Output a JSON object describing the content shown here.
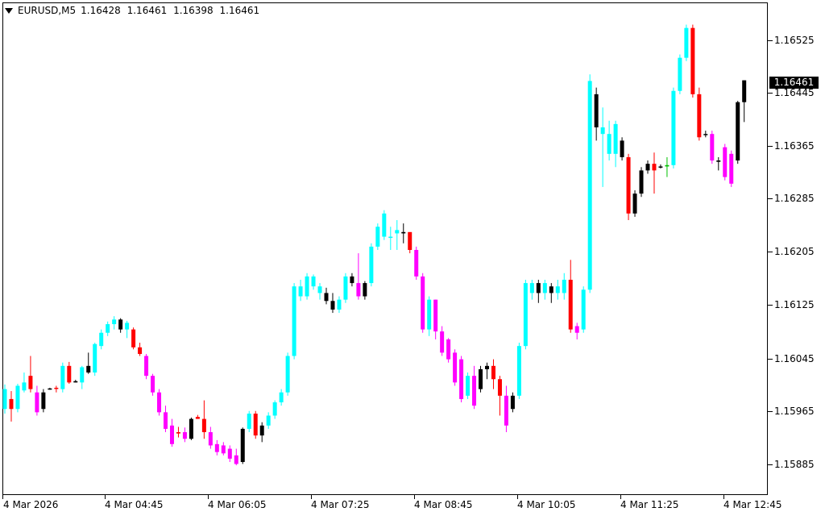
{
  "header": {
    "symbol": "EURUSD,M5",
    "open": "1.16428",
    "high": "1.16461",
    "low": "1.16398",
    "close": "1.16461"
  },
  "price_axis": {
    "labels": [
      "1.16525",
      "1.16445",
      "1.16365",
      "1.16285",
      "1.16205",
      "1.16125",
      "1.16045",
      "1.15965",
      "1.15885"
    ],
    "current_price": "1.16461"
  },
  "time_axis": {
    "labels": [
      "4 Mar 2026",
      "4 Mar 04:45",
      "4 Mar 06:05",
      "4 Mar 07:25",
      "4 Mar 08:45",
      "4 Mar 10:05",
      "4 Mar 11:25",
      "4 Mar 12:45"
    ]
  },
  "colors": {
    "up_wick_bear": "#ff00ff",
    "bull": "#00ffff",
    "bear": "#ff0000",
    "neutral": "#000000",
    "current_price_bg": "#000000"
  },
  "chart_data": {
    "type": "candlestick",
    "symbol": "EURUSD",
    "timeframe": "M5",
    "ylim": [
      1.1586,
      1.1656
    ],
    "candles": [
      {
        "o": 1.15995,
        "h": 1.16002,
        "l": 1.15958,
        "c": 1.15965,
        "col": "bull"
      },
      {
        "o": 1.15965,
        "h": 1.15992,
        "l": 1.15946,
        "c": 1.1598,
        "col": "bear"
      },
      {
        "o": 1.15965,
        "h": 1.16003,
        "l": 1.1596,
        "c": 1.16,
        "col": "bull"
      },
      {
        "o": 1.15993,
        "h": 1.1602,
        "l": 1.1599,
        "c": 1.16005,
        "col": "bull"
      },
      {
        "o": 1.16015,
        "h": 1.16045,
        "l": 1.1599,
        "c": 1.15995,
        "col": "bear"
      },
      {
        "o": 1.1599,
        "h": 1.16,
        "l": 1.15955,
        "c": 1.1596,
        "col": "mag"
      },
      {
        "o": 1.15965,
        "h": 1.15995,
        "l": 1.1596,
        "c": 1.1599,
        "col": "neutral"
      },
      {
        "o": 1.15995,
        "h": 1.15997,
        "l": 1.15994,
        "c": 1.15996,
        "col": "neutral"
      },
      {
        "o": 1.15996,
        "h": 1.16,
        "l": 1.1599,
        "c": 1.15997,
        "col": "bear"
      },
      {
        "o": 1.15995,
        "h": 1.16035,
        "l": 1.1599,
        "c": 1.1603,
        "col": "bull"
      },
      {
        "o": 1.1603,
        "h": 1.16036,
        "l": 1.16003,
        "c": 1.16005,
        "col": "bear"
      },
      {
        "o": 1.16005,
        "h": 1.16009,
        "l": 1.16005,
        "c": 1.16007,
        "col": "neutral"
      },
      {
        "o": 1.16005,
        "h": 1.1603,
        "l": 1.15995,
        "c": 1.16028,
        "col": "bull"
      },
      {
        "o": 1.1603,
        "h": 1.1605,
        "l": 1.16018,
        "c": 1.1602,
        "col": "neutral"
      },
      {
        "o": 1.1602,
        "h": 1.16065,
        "l": 1.16015,
        "c": 1.16063,
        "col": "bull"
      },
      {
        "o": 1.1606,
        "h": 1.16085,
        "l": 1.16055,
        "c": 1.1608,
        "col": "bull"
      },
      {
        "o": 1.1608,
        "h": 1.16097,
        "l": 1.16075,
        "c": 1.16093,
        "col": "bull"
      },
      {
        "o": 1.16093,
        "h": 1.16105,
        "l": 1.16085,
        "c": 1.161,
        "col": "bull"
      },
      {
        "o": 1.161,
        "h": 1.16102,
        "l": 1.1608,
        "c": 1.16085,
        "col": "neutral"
      },
      {
        "o": 1.16085,
        "h": 1.16098,
        "l": 1.16072,
        "c": 1.16095,
        "col": "bull"
      },
      {
        "o": 1.16085,
        "h": 1.16088,
        "l": 1.16055,
        "c": 1.16058,
        "col": "bear"
      },
      {
        "o": 1.16058,
        "h": 1.16065,
        "l": 1.16045,
        "c": 1.16048,
        "col": "bear"
      },
      {
        "o": 1.16045,
        "h": 1.16048,
        "l": 1.1601,
        "c": 1.16015,
        "col": "mag"
      },
      {
        "o": 1.16015,
        "h": 1.16018,
        "l": 1.15985,
        "c": 1.1599,
        "col": "mag"
      },
      {
        "o": 1.1599,
        "h": 1.15995,
        "l": 1.15955,
        "c": 1.1596,
        "col": "mag"
      },
      {
        "o": 1.1596,
        "h": 1.1597,
        "l": 1.1593,
        "c": 1.15935,
        "col": "mag"
      },
      {
        "o": 1.1594,
        "h": 1.1595,
        "l": 1.15908,
        "c": 1.15912,
        "col": "mag"
      },
      {
        "o": 1.1593,
        "h": 1.15938,
        "l": 1.15922,
        "c": 1.15928,
        "col": "bear"
      },
      {
        "o": 1.1593,
        "h": 1.15937,
        "l": 1.15915,
        "c": 1.1592,
        "col": "mag"
      },
      {
        "o": 1.1592,
        "h": 1.15952,
        "l": 1.15918,
        "c": 1.1595,
        "col": "neutral"
      },
      {
        "o": 1.1595,
        "h": 1.15956,
        "l": 1.1595,
        "c": 1.15953,
        "col": "bear"
      },
      {
        "o": 1.1595,
        "h": 1.15978,
        "l": 1.1592,
        "c": 1.1593,
        "col": "bear"
      },
      {
        "o": 1.1593,
        "h": 1.15938,
        "l": 1.15905,
        "c": 1.1591,
        "col": "mag"
      },
      {
        "o": 1.15912,
        "h": 1.15918,
        "l": 1.15895,
        "c": 1.159,
        "col": "mag"
      },
      {
        "o": 1.1591,
        "h": 1.15915,
        "l": 1.15895,
        "c": 1.15898,
        "col": "mag"
      },
      {
        "o": 1.15905,
        "h": 1.1591,
        "l": 1.15885,
        "c": 1.1589,
        "col": "mag"
      },
      {
        "o": 1.15895,
        "h": 1.15905,
        "l": 1.1588,
        "c": 1.15882,
        "col": "mag"
      },
      {
        "o": 1.15885,
        "h": 1.15937,
        "l": 1.15882,
        "c": 1.15935,
        "col": "neutral"
      },
      {
        "o": 1.15935,
        "h": 1.15962,
        "l": 1.1593,
        "c": 1.15958,
        "col": "bull"
      },
      {
        "o": 1.15958,
        "h": 1.15962,
        "l": 1.1592,
        "c": 1.15925,
        "col": "bear"
      },
      {
        "o": 1.15925,
        "h": 1.15945,
        "l": 1.15915,
        "c": 1.1594,
        "col": "neutral"
      },
      {
        "o": 1.1594,
        "h": 1.1596,
        "l": 1.15935,
        "c": 1.15955,
        "col": "bull"
      },
      {
        "o": 1.15955,
        "h": 1.15978,
        "l": 1.1595,
        "c": 1.15975,
        "col": "bull"
      },
      {
        "o": 1.15975,
        "h": 1.15995,
        "l": 1.1597,
        "c": 1.1599,
        "col": "bull"
      },
      {
        "o": 1.1599,
        "h": 1.1605,
        "l": 1.15985,
        "c": 1.16045,
        "col": "bull"
      },
      {
        "o": 1.16045,
        "h": 1.16155,
        "l": 1.1604,
        "c": 1.1615,
        "col": "bull"
      },
      {
        "o": 1.1615,
        "h": 1.1616,
        "l": 1.16128,
        "c": 1.16135,
        "col": "bull"
      },
      {
        "o": 1.16135,
        "h": 1.1617,
        "l": 1.1613,
        "c": 1.16165,
        "col": "bull"
      },
      {
        "o": 1.16165,
        "h": 1.16168,
        "l": 1.16145,
        "c": 1.1615,
        "col": "bull"
      },
      {
        "o": 1.1615,
        "h": 1.16155,
        "l": 1.1613,
        "c": 1.1614,
        "col": "bull"
      },
      {
        "o": 1.1614,
        "h": 1.16148,
        "l": 1.16123,
        "c": 1.16128,
        "col": "neutral"
      },
      {
        "o": 1.16128,
        "h": 1.1614,
        "l": 1.1611,
        "c": 1.16115,
        "col": "neutral"
      },
      {
        "o": 1.16115,
        "h": 1.16135,
        "l": 1.1611,
        "c": 1.1613,
        "col": "bull"
      },
      {
        "o": 1.1613,
        "h": 1.1617,
        "l": 1.16125,
        "c": 1.16165,
        "col": "bull"
      },
      {
        "o": 1.16165,
        "h": 1.1617,
        "l": 1.1615,
        "c": 1.16155,
        "col": "neutral"
      },
      {
        "o": 1.16155,
        "h": 1.162,
        "l": 1.1613,
        "c": 1.16135,
        "col": "mag"
      },
      {
        "o": 1.16135,
        "h": 1.16158,
        "l": 1.1613,
        "c": 1.16155,
        "col": "neutral"
      },
      {
        "o": 1.16155,
        "h": 1.16215,
        "l": 1.1615,
        "c": 1.1621,
        "col": "bull"
      },
      {
        "o": 1.1621,
        "h": 1.16245,
        "l": 1.16205,
        "c": 1.1624,
        "col": "bull"
      },
      {
        "o": 1.16225,
        "h": 1.16265,
        "l": 1.1622,
        "c": 1.1626,
        "col": "bull"
      },
      {
        "o": 1.16225,
        "h": 1.1624,
        "l": 1.16205,
        "c": 1.16225,
        "col": "bull"
      },
      {
        "o": 1.1623,
        "h": 1.1625,
        "l": 1.16205,
        "c": 1.16235,
        "col": "bull"
      },
      {
        "o": 1.1623,
        "h": 1.16245,
        "l": 1.16215,
        "c": 1.16232,
        "col": "neutral"
      },
      {
        "o": 1.16232,
        "h": 1.1623,
        "l": 1.162,
        "c": 1.16205,
        "col": "bear"
      },
      {
        "o": 1.16205,
        "h": 1.1621,
        "l": 1.1616,
        "c": 1.16165,
        "col": "mag"
      },
      {
        "o": 1.16165,
        "h": 1.1617,
        "l": 1.1608,
        "c": 1.16085,
        "col": "mag"
      },
      {
        "o": 1.16085,
        "h": 1.16135,
        "l": 1.16075,
        "c": 1.1613,
        "col": "bull"
      },
      {
        "o": 1.1613,
        "h": 1.1613,
        "l": 1.1607,
        "c": 1.16082,
        "col": "mag"
      },
      {
        "o": 1.16082,
        "h": 1.1609,
        "l": 1.16045,
        "c": 1.1605,
        "col": "mag"
      },
      {
        "o": 1.1607,
        "h": 1.16072,
        "l": 1.16035,
        "c": 1.1604,
        "col": "mag"
      },
      {
        "o": 1.1605,
        "h": 1.16055,
        "l": 1.16,
        "c": 1.16005,
        "col": "mag"
      },
      {
        "o": 1.1604,
        "h": 1.16045,
        "l": 1.15975,
        "c": 1.1598,
        "col": "mag"
      },
      {
        "o": 1.15985,
        "h": 1.1602,
        "l": 1.1598,
        "c": 1.16015,
        "col": "bull"
      },
      {
        "o": 1.16015,
        "h": 1.1603,
        "l": 1.15965,
        "c": 1.1597,
        "col": "mag"
      },
      {
        "o": 1.15995,
        "h": 1.1603,
        "l": 1.1599,
        "c": 1.16025,
        "col": "neutral"
      },
      {
        "o": 1.16025,
        "h": 1.16035,
        "l": 1.1601,
        "c": 1.1603,
        "col": "neutral"
      },
      {
        "o": 1.1603,
        "h": 1.1604,
        "l": 1.15995,
        "c": 1.1601,
        "col": "bear"
      },
      {
        "o": 1.1601,
        "h": 1.16015,
        "l": 1.15955,
        "c": 1.15985,
        "col": "bear"
      },
      {
        "o": 1.15985,
        "h": 1.16,
        "l": 1.1593,
        "c": 1.1594,
        "col": "mag"
      },
      {
        "o": 1.15965,
        "h": 1.1599,
        "l": 1.1596,
        "c": 1.15985,
        "col": "neutral"
      },
      {
        "o": 1.15985,
        "h": 1.16065,
        "l": 1.1598,
        "c": 1.1606,
        "col": "bull"
      },
      {
        "o": 1.1606,
        "h": 1.1616,
        "l": 1.16055,
        "c": 1.16155,
        "col": "bull"
      },
      {
        "o": 1.16155,
        "h": 1.1616,
        "l": 1.1613,
        "c": 1.1614,
        "col": "bull"
      },
      {
        "o": 1.1614,
        "h": 1.1616,
        "l": 1.16125,
        "c": 1.16155,
        "col": "neutral"
      },
      {
        "o": 1.16155,
        "h": 1.1616,
        "l": 1.1613,
        "c": 1.1614,
        "col": "bull"
      },
      {
        "o": 1.1614,
        "h": 1.16155,
        "l": 1.16125,
        "c": 1.1615,
        "col": "neutral"
      },
      {
        "o": 1.1615,
        "h": 1.1616,
        "l": 1.1613,
        "c": 1.1614,
        "col": "bull"
      },
      {
        "o": 1.1614,
        "h": 1.1617,
        "l": 1.1613,
        "c": 1.1616,
        "col": "bull"
      },
      {
        "o": 1.1616,
        "h": 1.1619,
        "l": 1.1608,
        "c": 1.16085,
        "col": "bear"
      },
      {
        "o": 1.1609,
        "h": 1.16095,
        "l": 1.1607,
        "c": 1.1608,
        "col": "mag"
      },
      {
        "o": 1.16085,
        "h": 1.1615,
        "l": 1.1608,
        "c": 1.16145,
        "col": "bull"
      },
      {
        "o": 1.16145,
        "h": 1.1647,
        "l": 1.1614,
        "c": 1.1646,
        "col": "bull"
      },
      {
        "o": 1.1644,
        "h": 1.1645,
        "l": 1.1637,
        "c": 1.1639,
        "col": "neutral"
      },
      {
        "o": 1.1639,
        "h": 1.1642,
        "l": 1.163,
        "c": 1.1638,
        "col": "bull"
      },
      {
        "o": 1.1638,
        "h": 1.164,
        "l": 1.1634,
        "c": 1.1635,
        "col": "bull"
      },
      {
        "o": 1.1635,
        "h": 1.164,
        "l": 1.1633,
        "c": 1.16395,
        "col": "bull"
      },
      {
        "o": 1.1637,
        "h": 1.16375,
        "l": 1.1634,
        "c": 1.16345,
        "col": "neutral"
      },
      {
        "o": 1.16345,
        "h": 1.1635,
        "l": 1.1625,
        "c": 1.1626,
        "col": "bear"
      },
      {
        "o": 1.1626,
        "h": 1.16295,
        "l": 1.16255,
        "c": 1.1629,
        "col": "neutral"
      },
      {
        "o": 1.1629,
        "h": 1.1633,
        "l": 1.16285,
        "c": 1.16325,
        "col": "neutral"
      },
      {
        "o": 1.16325,
        "h": 1.1634,
        "l": 1.1632,
        "c": 1.16335,
        "col": "neutral"
      },
      {
        "o": 1.16335,
        "h": 1.16352,
        "l": 1.1629,
        "c": 1.16325,
        "col": "bear"
      },
      {
        "o": 1.1633,
        "h": 1.16334,
        "l": 1.16328,
        "c": 1.16331,
        "col": "neutral"
      },
      {
        "o": 1.16331,
        "h": 1.16345,
        "l": 1.16315,
        "c": 1.16333,
        "col": "green"
      },
      {
        "o": 1.16333,
        "h": 1.1645,
        "l": 1.16328,
        "c": 1.16445,
        "col": "bull"
      },
      {
        "o": 1.16445,
        "h": 1.165,
        "l": 1.1644,
        "c": 1.16495,
        "col": "bull"
      },
      {
        "o": 1.16495,
        "h": 1.16545,
        "l": 1.1649,
        "c": 1.1654,
        "col": "bull"
      },
      {
        "o": 1.1654,
        "h": 1.16545,
        "l": 1.16435,
        "c": 1.1644,
        "col": "bear"
      },
      {
        "o": 1.1644,
        "h": 1.1645,
        "l": 1.1637,
        "c": 1.16375,
        "col": "bear"
      },
      {
        "o": 1.1638,
        "h": 1.16385,
        "l": 1.16375,
        "c": 1.1638,
        "col": "neutral"
      },
      {
        "o": 1.1638,
        "h": 1.16385,
        "l": 1.16335,
        "c": 1.1634,
        "col": "mag"
      },
      {
        "o": 1.1634,
        "h": 1.16345,
        "l": 1.16325,
        "c": 1.16338,
        "col": "neutral"
      },
      {
        "o": 1.1636,
        "h": 1.16365,
        "l": 1.1631,
        "c": 1.16315,
        "col": "mag"
      },
      {
        "o": 1.1635,
        "h": 1.16355,
        "l": 1.163,
        "c": 1.16305,
        "col": "mag"
      },
      {
        "o": 1.1634,
        "h": 1.1643,
        "l": 1.16335,
        "c": 1.16428,
        "col": "neutral"
      },
      {
        "o": 1.16428,
        "h": 1.16461,
        "l": 1.16398,
        "c": 1.16461,
        "col": "neutral"
      }
    ]
  }
}
